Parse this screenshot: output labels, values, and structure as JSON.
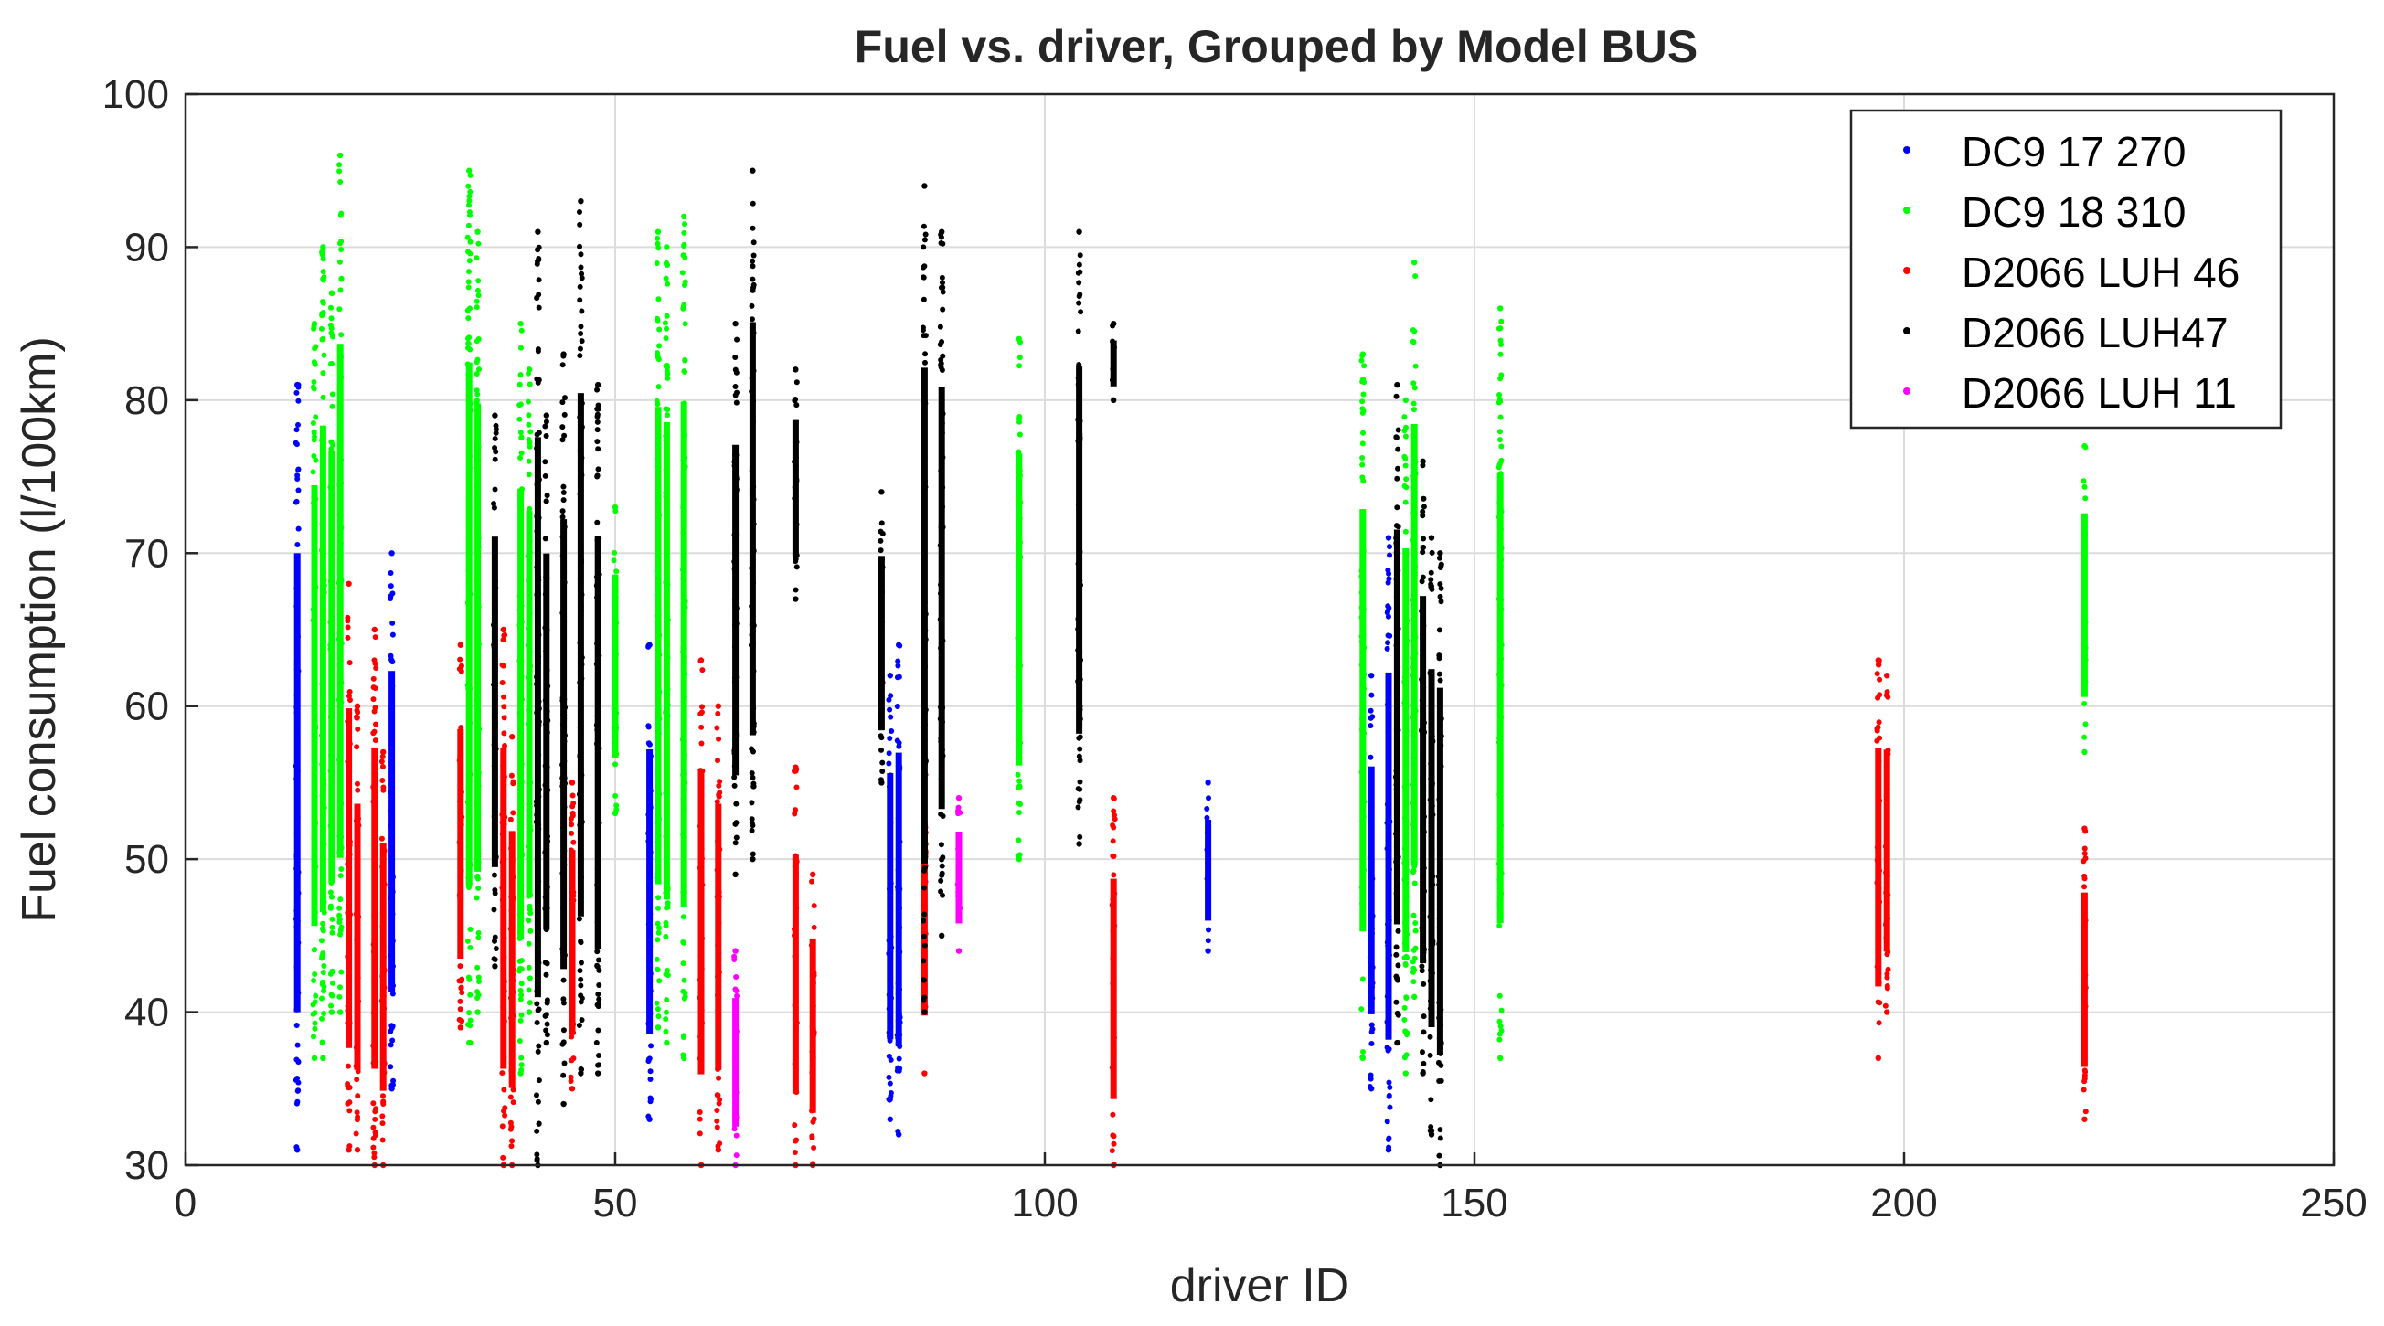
{
  "chart_data": {
    "type": "scatter",
    "title": "Fuel vs. driver, Grouped by Model BUS",
    "xlabel": "driver ID",
    "ylabel": "Fuel consumption (l/100km)",
    "xlim": [
      0,
      250
    ],
    "ylim": [
      30,
      100
    ],
    "xticks": [
      0,
      50,
      100,
      150,
      200,
      250
    ],
    "yticks": [
      30,
      40,
      50,
      60,
      70,
      80,
      90,
      100
    ],
    "grid": true,
    "legend_position": "top-right",
    "series": [
      {
        "name": "DC9 17 270",
        "color": "#0000ff",
        "columns": [
          {
            "x": 13,
            "ymin": 31,
            "ymax": 81
          },
          {
            "x": 24,
            "ymin": 35,
            "ymax": 70
          },
          {
            "x": 54,
            "ymin": 33,
            "ymax": 64
          },
          {
            "x": 82,
            "ymin": 33,
            "ymax": 62
          },
          {
            "x": 83,
            "ymin": 32,
            "ymax": 64
          },
          {
            "x": 119,
            "ymin": 44,
            "ymax": 55
          },
          {
            "x": 138,
            "ymin": 35,
            "ymax": 62
          },
          {
            "x": 140,
            "ymin": 31,
            "ymax": 71
          }
        ]
      },
      {
        "name": "DC9 18 310",
        "color": "#00ff00",
        "columns": [
          {
            "x": 15,
            "ymin": 37,
            "ymax": 85
          },
          {
            "x": 16,
            "ymin": 37,
            "ymax": 90
          },
          {
            "x": 17,
            "ymin": 40,
            "ymax": 87
          },
          {
            "x": 18,
            "ymin": 40,
            "ymax": 96
          },
          {
            "x": 33,
            "ymin": 38,
            "ymax": 95
          },
          {
            "x": 34,
            "ymin": 40,
            "ymax": 91
          },
          {
            "x": 39,
            "ymin": 36,
            "ymax": 85
          },
          {
            "x": 40,
            "ymin": 40,
            "ymax": 82
          },
          {
            "x": 50,
            "ymin": 53,
            "ymax": 73
          },
          {
            "x": 55,
            "ymin": 39,
            "ymax": 91
          },
          {
            "x": 56,
            "ymin": 38,
            "ymax": 90
          },
          {
            "x": 58,
            "ymin": 37,
            "ymax": 92
          },
          {
            "x": 97,
            "ymin": 50,
            "ymax": 84
          },
          {
            "x": 137,
            "ymin": 37,
            "ymax": 83
          },
          {
            "x": 142,
            "ymin": 36,
            "ymax": 80
          },
          {
            "x": 143,
            "ymin": 41,
            "ymax": 89
          },
          {
            "x": 153,
            "ymin": 37,
            "ymax": 86
          },
          {
            "x": 221,
            "ymin": 57,
            "ymax": 77
          }
        ]
      },
      {
        "name": "D2066 LUH 46",
        "color": "#ff0000",
        "columns": [
          {
            "x": 19,
            "ymin": 31,
            "ymax": 68
          },
          {
            "x": 20,
            "ymin": 31,
            "ymax": 60
          },
          {
            "x": 22,
            "ymin": 30,
            "ymax": 65
          },
          {
            "x": 23,
            "ymin": 30,
            "ymax": 57
          },
          {
            "x": 32,
            "ymin": 39,
            "ymax": 64
          },
          {
            "x": 37,
            "ymin": 30,
            "ymax": 65
          },
          {
            "x": 38,
            "ymin": 30,
            "ymax": 58
          },
          {
            "x": 45,
            "ymin": 35,
            "ymax": 55
          },
          {
            "x": 60,
            "ymin": 30,
            "ymax": 63
          },
          {
            "x": 62,
            "ymin": 31,
            "ymax": 60
          },
          {
            "x": 71,
            "ymin": 30,
            "ymax": 56
          },
          {
            "x": 73,
            "ymin": 30,
            "ymax": 49
          },
          {
            "x": 86,
            "ymin": 36,
            "ymax": 57
          },
          {
            "x": 108,
            "ymin": 30,
            "ymax": 54
          },
          {
            "x": 197,
            "ymin": 37,
            "ymax": 63
          },
          {
            "x": 198,
            "ymin": 40,
            "ymax": 62
          },
          {
            "x": 221,
            "ymin": 33,
            "ymax": 52
          }
        ]
      },
      {
        "name": "D2066 LUH47",
        "color": "#000000",
        "columns": [
          {
            "x": 36,
            "ymin": 43,
            "ymax": 79
          },
          {
            "x": 41,
            "ymin": 30,
            "ymax": 91
          },
          {
            "x": 42,
            "ymin": 38,
            "ymax": 79
          },
          {
            "x": 44,
            "ymin": 34,
            "ymax": 83
          },
          {
            "x": 46,
            "ymin": 36,
            "ymax": 93
          },
          {
            "x": 48,
            "ymin": 36,
            "ymax": 81
          },
          {
            "x": 64,
            "ymin": 49,
            "ymax": 85
          },
          {
            "x": 66,
            "ymin": 50,
            "ymax": 95
          },
          {
            "x": 71,
            "ymin": 67,
            "ymax": 82
          },
          {
            "x": 81,
            "ymin": 55,
            "ymax": 74
          },
          {
            "x": 86,
            "ymin": 40,
            "ymax": 94
          },
          {
            "x": 88,
            "ymin": 45,
            "ymax": 91
          },
          {
            "x": 104,
            "ymin": 51,
            "ymax": 91
          },
          {
            "x": 108,
            "ymin": 80,
            "ymax": 85
          },
          {
            "x": 141,
            "ymin": 38,
            "ymax": 81
          },
          {
            "x": 144,
            "ymin": 36,
            "ymax": 76
          },
          {
            "x": 145,
            "ymin": 32,
            "ymax": 71
          },
          {
            "x": 146,
            "ymin": 30,
            "ymax": 70
          }
        ]
      },
      {
        "name": "D2066 LUH 11",
        "color": "#ff00ff",
        "columns": [
          {
            "x": 64,
            "ymin": 30,
            "ymax": 44
          },
          {
            "x": 90,
            "ymin": 44,
            "ymax": 54
          }
        ]
      }
    ]
  }
}
